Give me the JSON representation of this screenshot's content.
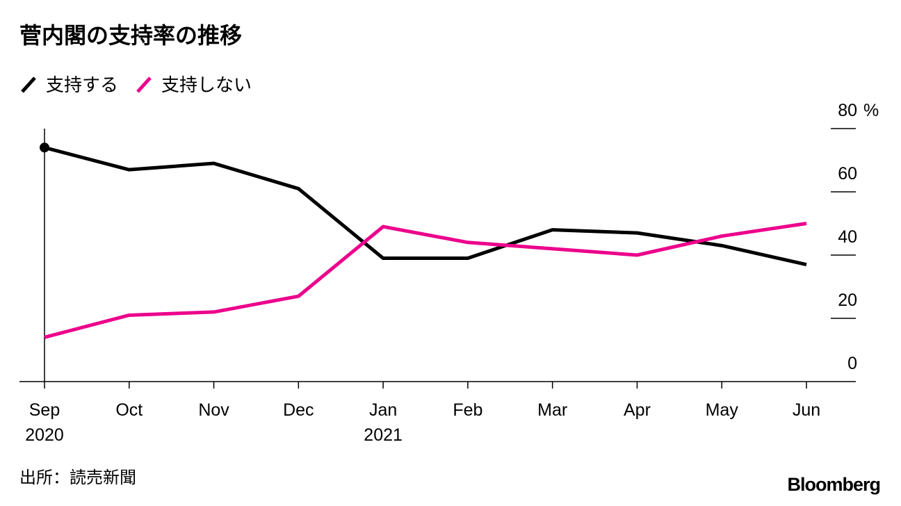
{
  "chart_data": {
    "type": "line",
    "title": "菅内閣の支持率の推移",
    "categories": [
      "Sep",
      "Oct",
      "Nov",
      "Dec",
      "Jan",
      "Feb",
      "Mar",
      "Apr",
      "May",
      "Jun"
    ],
    "year_labels": [
      "2020",
      null,
      null,
      null,
      "2021",
      null,
      null,
      null,
      null,
      null
    ],
    "series": [
      {
        "name": "支持する",
        "color": "#000000",
        "values": [
          74,
          67,
          69,
          61,
          39,
          39,
          48,
          47,
          43,
          37
        ]
      },
      {
        "name": "支持しない",
        "color": "#ec008c",
        "values": [
          14,
          21,
          22,
          27,
          49,
          44,
          42,
          40,
          46,
          50
        ]
      }
    ],
    "ylim": [
      0,
      80
    ],
    "yticks": [
      0,
      20,
      40,
      60,
      80
    ],
    "y_unit": "%",
    "source": "出所：読売新聞",
    "brand": "Bloomberg"
  }
}
